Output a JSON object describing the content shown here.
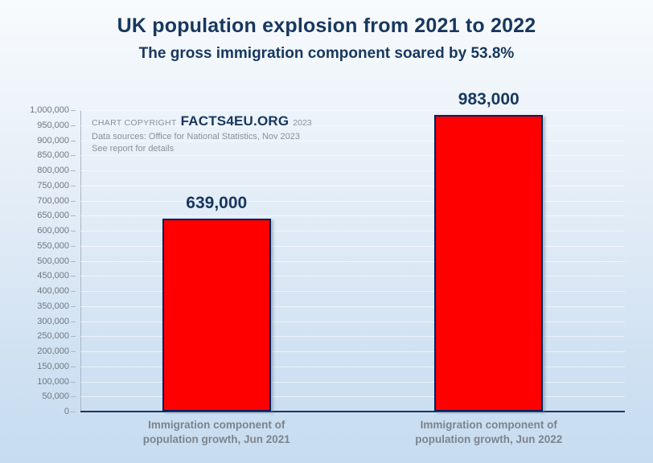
{
  "title": "UK population explosion from 2021 to 2022",
  "subtitle": "The gross immigration component soared by 53.8%",
  "copyright": {
    "prefix": "CHART COPYRIGHT",
    "brand": "FACTS4EU.ORG",
    "year": "2023",
    "source_line": "Data sources: Office for National Statistics, Nov 2023",
    "note_line": "See report for details"
  },
  "colors": {
    "title_navy": "#17375e",
    "bar_red": "#fe0000",
    "bar_border_navy": "#002060",
    "axis_gray": "#a9b6c4",
    "tick_text_gray": "#6f7780",
    "category_text_gray": "#7c848d",
    "gridline": "rgba(255,255,255,0.55)"
  },
  "chart_data": {
    "type": "bar",
    "categories": [
      {
        "line1": "Immigration component of",
        "line2": "population growth, Jun 2021"
      },
      {
        "line1": "Immigration component of",
        "line2": "population growth, Jun 2022"
      }
    ],
    "values": [
      639000,
      983000
    ],
    "value_labels": [
      "639,000",
      "983,000"
    ],
    "title": "UK population explosion from 2021 to 2022",
    "subtitle": "The gross immigration component soared by 53.8%",
    "xlabel": "",
    "ylabel": "",
    "ylim": [
      0,
      1000000
    ],
    "ytick_step": 50000,
    "ytick_labels": [
      "0",
      "50,000",
      "100,000",
      "150,000",
      "200,000",
      "250,000",
      "300,000",
      "350,000",
      "400,000",
      "450,000",
      "500,000",
      "550,000",
      "600,000",
      "650,000",
      "700,000",
      "750,000",
      "800,000",
      "850,000",
      "900,000",
      "950,000",
      "1,000,000"
    ],
    "grid": true,
    "legend": "none",
    "bar_color": "#fe0000"
  }
}
